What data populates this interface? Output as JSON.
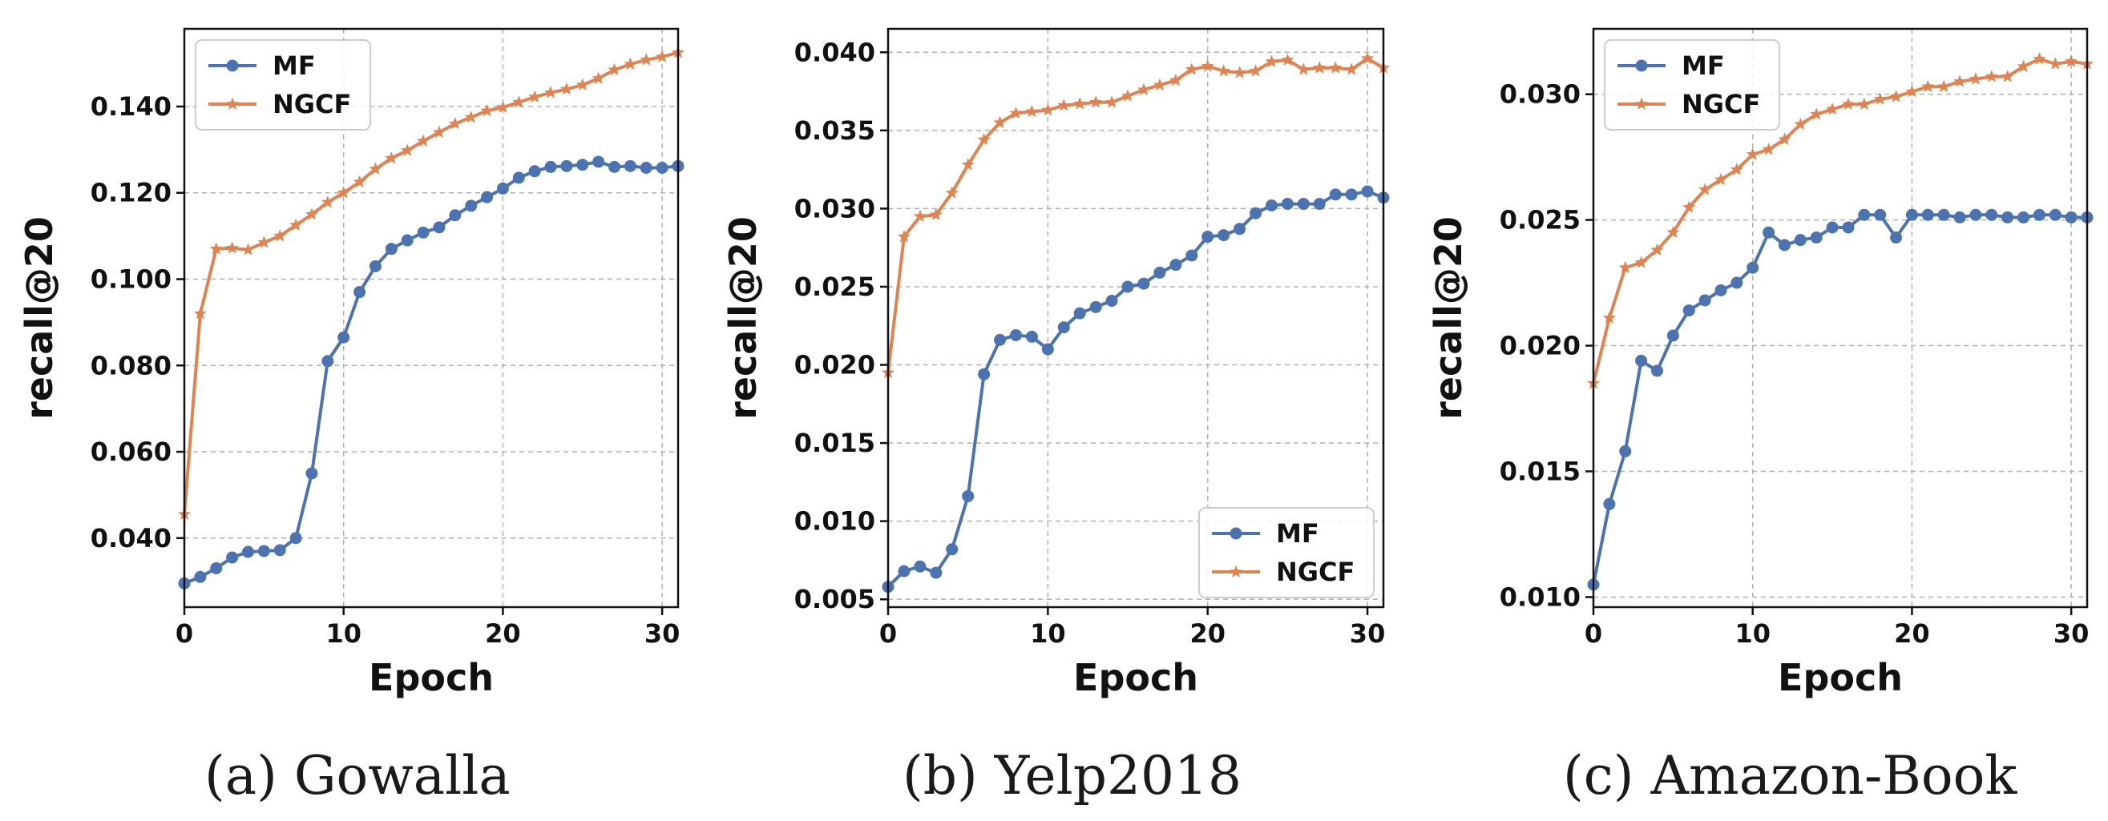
{
  "colors": {
    "MF": "#4c72b0",
    "NGCF": "#dd8452"
  },
  "chart_data": [
    {
      "type": "line",
      "caption": "(a)  Gowalla",
      "xlabel": "Epoch",
      "ylabel": "recall@20",
      "xlim": [
        0,
        31
      ],
      "ylim": [
        0.024,
        0.158
      ],
      "xticks": [
        0,
        10,
        20,
        30
      ],
      "xtick_labels": [
        "0",
        "10",
        "20",
        "30"
      ],
      "yticks": [
        0.04,
        0.06,
        0.08,
        0.1,
        0.12,
        0.14
      ],
      "ytick_labels": [
        "0.040",
        "0.060",
        "0.080",
        "0.100",
        "0.120",
        "0.140"
      ],
      "grid": true,
      "legend_position": "top-left",
      "x": [
        0,
        1,
        2,
        3,
        4,
        5,
        6,
        7,
        8,
        9,
        10,
        11,
        12,
        13,
        14,
        15,
        16,
        17,
        18,
        19,
        20,
        21,
        22,
        23,
        24,
        25,
        26,
        27,
        28,
        29,
        30,
        31
      ],
      "series": [
        {
          "name": "MF",
          "marker": "circle",
          "values": [
            0.0295,
            0.031,
            0.033,
            0.0355,
            0.0368,
            0.037,
            0.0372,
            0.04,
            0.055,
            0.081,
            0.0865,
            0.097,
            0.103,
            0.107,
            0.109,
            0.1108,
            0.112,
            0.1148,
            0.117,
            0.119,
            0.121,
            0.1235,
            0.125,
            0.126,
            0.1262,
            0.1265,
            0.1272,
            0.126,
            0.1262,
            0.1258,
            0.1258,
            0.1262
          ]
        },
        {
          "name": "NGCF",
          "marker": "star",
          "values": [
            0.0455,
            0.092,
            0.107,
            0.1072,
            0.1068,
            0.1085,
            0.11,
            0.1125,
            0.115,
            0.1178,
            0.12,
            0.1225,
            0.1255,
            0.128,
            0.1298,
            0.132,
            0.134,
            0.136,
            0.1375,
            0.139,
            0.1398,
            0.141,
            0.1422,
            0.1432,
            0.144,
            0.145,
            0.1465,
            0.1485,
            0.1498,
            0.1508,
            0.1515,
            0.1525
          ]
        }
      ]
    },
    {
      "type": "line",
      "caption": "(b)  Yelp2018",
      "xlabel": "Epoch",
      "ylabel": "recall@20",
      "xlim": [
        0,
        31
      ],
      "ylim": [
        0.0045,
        0.0415
      ],
      "xticks": [
        0,
        10,
        20,
        30
      ],
      "xtick_labels": [
        "0",
        "10",
        "20",
        "30"
      ],
      "yticks": [
        0.005,
        0.01,
        0.015,
        0.02,
        0.025,
        0.03,
        0.035,
        0.04
      ],
      "ytick_labels": [
        "0.005",
        "0.010",
        "0.015",
        "0.020",
        "0.025",
        "0.030",
        "0.035",
        "0.040"
      ],
      "grid": true,
      "legend_position": "bottom-right",
      "x": [
        0,
        1,
        2,
        3,
        4,
        5,
        6,
        7,
        8,
        9,
        10,
        11,
        12,
        13,
        14,
        15,
        16,
        17,
        18,
        19,
        20,
        21,
        22,
        23,
        24,
        25,
        26,
        27,
        28,
        29,
        30,
        31
      ],
      "series": [
        {
          "name": "MF",
          "marker": "circle",
          "values": [
            0.0058,
            0.0068,
            0.0071,
            0.0067,
            0.0082,
            0.0116,
            0.0194,
            0.0216,
            0.0219,
            0.0218,
            0.021,
            0.0224,
            0.0233,
            0.0237,
            0.0241,
            0.025,
            0.0252,
            0.0259,
            0.0264,
            0.027,
            0.0282,
            0.0283,
            0.0287,
            0.0297,
            0.0302,
            0.0303,
            0.0303,
            0.0303,
            0.0309,
            0.0309,
            0.0311,
            0.0307
          ]
        },
        {
          "name": "NGCF",
          "marker": "star",
          "values": [
            0.0195,
            0.0282,
            0.0295,
            0.0296,
            0.031,
            0.0328,
            0.0344,
            0.0355,
            0.0361,
            0.0362,
            0.0363,
            0.0366,
            0.0367,
            0.0368,
            0.0368,
            0.0372,
            0.0376,
            0.0379,
            0.0382,
            0.0389,
            0.0391,
            0.0388,
            0.0387,
            0.0388,
            0.0394,
            0.0395,
            0.0389,
            0.039,
            0.039,
            0.0389,
            0.0396,
            0.039
          ]
        }
      ]
    },
    {
      "type": "line",
      "caption": "(c)  Amazon-Book",
      "xlabel": "Epoch",
      "ylabel": "recall@20",
      "xlim": [
        0,
        31
      ],
      "ylim": [
        0.0096,
        0.0326
      ],
      "xticks": [
        0,
        10,
        20,
        30
      ],
      "xtick_labels": [
        "0",
        "10",
        "20",
        "30"
      ],
      "yticks": [
        0.01,
        0.015,
        0.02,
        0.025,
        0.03
      ],
      "ytick_labels": [
        "0.010",
        "0.015",
        "0.020",
        "0.025",
        "0.030"
      ],
      "grid": true,
      "legend_position": "top-left",
      "x": [
        0,
        1,
        2,
        3,
        4,
        5,
        6,
        7,
        8,
        9,
        10,
        11,
        12,
        13,
        14,
        15,
        16,
        17,
        18,
        19,
        20,
        21,
        22,
        23,
        24,
        25,
        26,
        27,
        28,
        29,
        30,
        31
      ],
      "series": [
        {
          "name": "MF",
          "marker": "circle",
          "values": [
            0.0105,
            0.0137,
            0.0158,
            0.0194,
            0.019,
            0.0204,
            0.0214,
            0.0218,
            0.0222,
            0.0225,
            0.0231,
            0.0245,
            0.024,
            0.0242,
            0.0243,
            0.0247,
            0.0247,
            0.0252,
            0.0252,
            0.0243,
            0.0252,
            0.0252,
            0.0252,
            0.0251,
            0.0252,
            0.0252,
            0.0251,
            0.0251,
            0.0252,
            0.0252,
            0.0251,
            0.0251
          ]
        },
        {
          "name": "NGCF",
          "marker": "star",
          "values": [
            0.0185,
            0.0211,
            0.0231,
            0.0233,
            0.0238,
            0.0245,
            0.0255,
            0.0262,
            0.0266,
            0.027,
            0.0276,
            0.0278,
            0.0282,
            0.0288,
            0.0292,
            0.0294,
            0.0296,
            0.0296,
            0.0298,
            0.0299,
            0.0301,
            0.0303,
            0.0303,
            0.0305,
            0.0306,
            0.0307,
            0.0307,
            0.0311,
            0.0314,
            0.0312,
            0.0313,
            0.0312
          ]
        }
      ]
    }
  ]
}
